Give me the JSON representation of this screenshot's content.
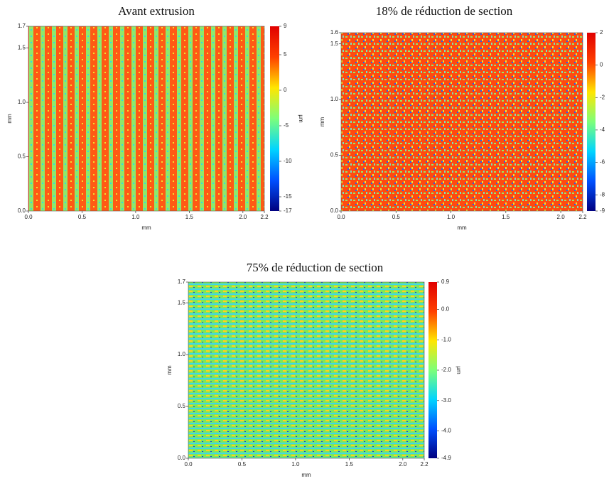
{
  "chart_data": [
    {
      "type": "heatmap",
      "title": "Avant extrusion",
      "xlabel": "mm",
      "ylabel": "mm",
      "zlabel": "µm",
      "xlim": [
        0,
        2.2
      ],
      "xticks": [
        {
          "value": 0,
          "label": "0.0"
        },
        0.5,
        {
          "value": 1,
          "label": "1.0"
        },
        1.5,
        {
          "value": 2,
          "label": "2.0"
        },
        2.2
      ],
      "ylim": [
        0,
        1.7
      ],
      "yticks": [
        {
          "value": 0,
          "label": "0.0"
        },
        0.5,
        {
          "value": 1,
          "label": "1.0"
        },
        1.5,
        1.7
      ],
      "zlim": [
        -17,
        9
      ],
      "zticks": [
        9,
        5,
        0,
        -5,
        -10,
        -15,
        -17
      ],
      "colormap": [
        "#00007f",
        "#0050ff",
        "#00d4ff",
        "#7dff7a",
        "#ffe600",
        "#ff4000",
        "#e00000"
      ]
    },
    {
      "type": "heatmap",
      "title": "18% de réduction de section",
      "xlabel": "mm",
      "ylabel": "mm",
      "xlim": [
        0,
        2.2
      ],
      "xticks": [
        {
          "value": 0,
          "label": "0.0"
        },
        0.5,
        {
          "value": 1,
          "label": "1.0"
        },
        1.5,
        {
          "value": 2,
          "label": "2.0"
        },
        2.2
      ],
      "ylim": [
        0,
        1.6
      ],
      "yticks": [
        {
          "value": 0,
          "label": "0.0"
        },
        0.5,
        {
          "value": 1,
          "label": "1.0"
        },
        1.5,
        1.6
      ],
      "zlim": [
        -9,
        2
      ],
      "zticks": [
        2,
        0,
        -2,
        -4,
        -6,
        -8,
        -9
      ],
      "colormap": [
        "#00007f",
        "#0050ff",
        "#00d4ff",
        "#7dff7a",
        "#ffe600",
        "#ff4000",
        "#e00000"
      ]
    },
    {
      "type": "heatmap",
      "title": "75% de réduction de section",
      "xlabel": "mm",
      "ylabel": "mm",
      "zlabel": "µm",
      "xlim": [
        0,
        2.2
      ],
      "xticks": [
        {
          "value": 0,
          "label": "0.0"
        },
        0.5,
        {
          "value": 1,
          "label": "1.0"
        },
        1.5,
        {
          "value": 2,
          "label": "2.0"
        },
        2.2
      ],
      "ylim": [
        0,
        1.7
      ],
      "yticks": [
        {
          "value": 0,
          "label": "0.0"
        },
        0.5,
        {
          "value": 1,
          "label": "1.0"
        },
        1.5,
        1.7
      ],
      "zlim": [
        -4.9,
        0.9
      ],
      "zticks": [
        0.9,
        {
          "value": 0,
          "label": "0.0"
        },
        {
          "value": -1,
          "label": "-1.0"
        },
        {
          "value": -2,
          "label": "-2.0"
        },
        {
          "value": -3,
          "label": "-3.0"
        },
        {
          "value": -4,
          "label": "-4.0"
        },
        -4.9
      ],
      "colormap": [
        "#00007f",
        "#0050ff",
        "#00d4ff",
        "#7dff7a",
        "#ffe600",
        "#ff4000",
        "#e00000"
      ]
    }
  ]
}
